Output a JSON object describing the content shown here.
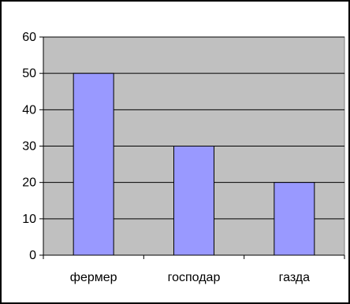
{
  "chart_data": {
    "type": "bar",
    "title": "",
    "xlabel": "",
    "ylabel": "",
    "categories": [
      "фермер",
      "господар",
      "газда"
    ],
    "values": [
      50,
      30,
      20
    ],
    "ylim": [
      0,
      60
    ],
    "y_ticks": [
      0,
      10,
      20,
      30,
      40,
      50,
      60
    ],
    "grid": true,
    "legend": "none",
    "colors": {
      "plot_background": "#c0c0c0",
      "bar_fill": "#9999ff",
      "bar_stroke": "#000000",
      "grid": "#000000",
      "frame": "#000000"
    }
  }
}
